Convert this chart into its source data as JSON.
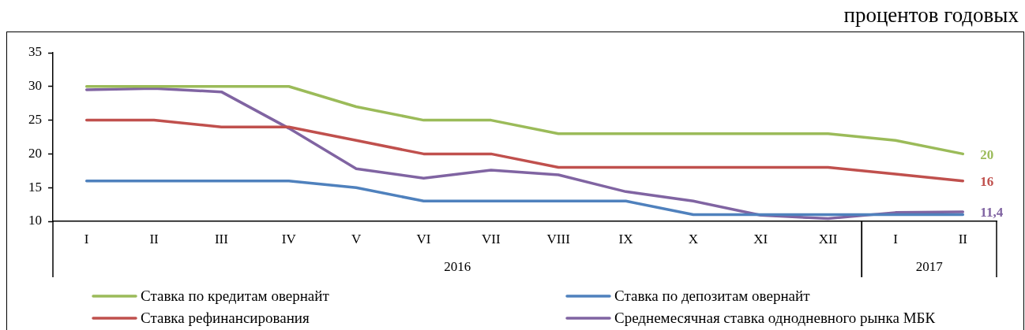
{
  "chart_data": {
    "type": "line",
    "ylabel": "процентов годовых",
    "categories": [
      "I",
      "II",
      "III",
      "IV",
      "V",
      "VI",
      "VII",
      "VIII",
      "IX",
      "X",
      "XI",
      "XII",
      "I",
      "II"
    ],
    "ylim": [
      10,
      35
    ],
    "yticks": [
      10,
      15,
      20,
      25,
      30,
      35
    ],
    "series": [
      {
        "name": "Ставка по кредитам овернайт",
        "color": "#9bbb59",
        "values": [
          30,
          30,
          30,
          30,
          27,
          25,
          25,
          23,
          23,
          23,
          23,
          23,
          22,
          20
        ],
        "value_labels": [
          null,
          null,
          null,
          null,
          null,
          null,
          null,
          null,
          null,
          null,
          null,
          null,
          null,
          "20"
        ]
      },
      {
        "name": "Ставка по депозитам овернайт",
        "color": "#4f81bd",
        "values": [
          16,
          16,
          16,
          16,
          15,
          13,
          13,
          13,
          13,
          11,
          11,
          11,
          11,
          11
        ]
      },
      {
        "name": "Ставка рефинансирования",
        "color": "#c0504d",
        "values": [
          25,
          25,
          24,
          24,
          22,
          20,
          20,
          18,
          18,
          18,
          18,
          18,
          17,
          16
        ],
        "value_labels": [
          null,
          null,
          null,
          null,
          null,
          null,
          null,
          null,
          null,
          null,
          null,
          null,
          null,
          "16"
        ]
      },
      {
        "name": "Среднемесячная ставка однодневного рынка МБК",
        "color": "#8064a2",
        "values": [
          29.5,
          29.7,
          29.2,
          23.8,
          17.8,
          16.4,
          17.6,
          16.9,
          14.4,
          13,
          10.9,
          10.4,
          11.3,
          11.4
        ],
        "value_labels": [
          null,
          null,
          null,
          null,
          null,
          null,
          null,
          null,
          null,
          null,
          null,
          null,
          null,
          "11,4"
        ]
      }
    ],
    "annotations": [
      "2016",
      "2017"
    ],
    "legend": "bottom"
  }
}
